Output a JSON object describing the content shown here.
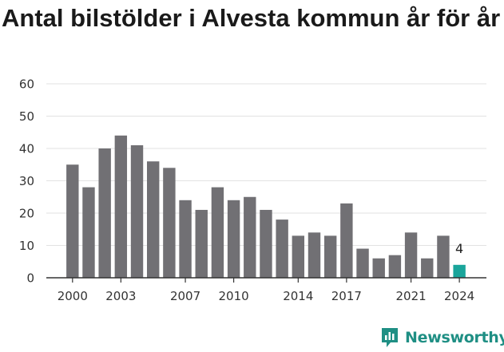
{
  "title": "Antal bilstölder i Alvesta kommun år för år",
  "brand": {
    "name": "Newsworthy",
    "icon": "newsworthy-logo-icon"
  },
  "colors": {
    "bar": "#717074",
    "highlight": "#1aa59b",
    "grid": "#e2e2e2",
    "axis": "#333333",
    "brand": "#1f8f84"
  },
  "chart_data": {
    "type": "bar",
    "title": "Antal bilstölder i Alvesta kommun år för år",
    "xlabel": "",
    "ylabel": "",
    "categories": [
      2000,
      2001,
      2002,
      2003,
      2004,
      2005,
      2006,
      2007,
      2008,
      2009,
      2010,
      2011,
      2012,
      2013,
      2014,
      2015,
      2016,
      2017,
      2018,
      2019,
      2020,
      2021,
      2022,
      2023,
      2024
    ],
    "values": [
      35,
      28,
      40,
      44,
      41,
      36,
      34,
      24,
      21,
      28,
      24,
      25,
      21,
      18,
      13,
      14,
      13,
      23,
      9,
      6,
      7,
      14,
      6,
      13,
      4
    ],
    "x_tick_labels": [
      "2000",
      "2003",
      "2007",
      "2010",
      "2014",
      "2017",
      "2021",
      "2024"
    ],
    "y_ticks": [
      0,
      10,
      20,
      30,
      40,
      50,
      60
    ],
    "ylim": [
      0,
      60
    ],
    "grid": true,
    "highlight": {
      "category": 2024,
      "label": "4"
    }
  }
}
